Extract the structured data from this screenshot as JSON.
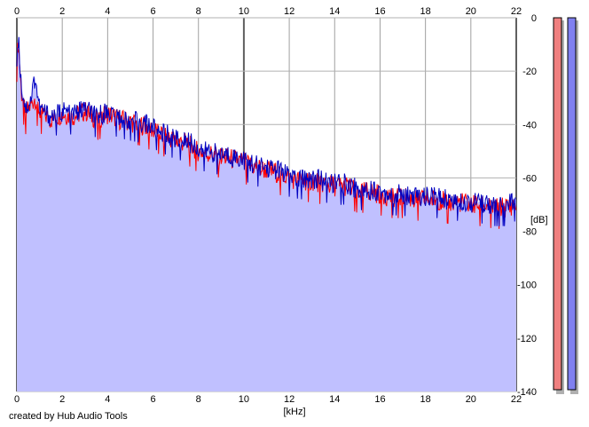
{
  "footer": {
    "credit": "created by Hub Audio Tools"
  },
  "meters": [
    {
      "name": "left channel level meter",
      "color": "#f08080"
    },
    {
      "name": "right channel level meter",
      "color": "#8080f0"
    }
  ],
  "chart_data": {
    "type": "area",
    "title": "",
    "xlabel": "[kHz]",
    "ylabel": "[dB]",
    "xlim": [
      0,
      22
    ],
    "ylim": [
      -140,
      0
    ],
    "xticks": [
      "0",
      "2",
      "4",
      "6",
      "8",
      "10",
      "12",
      "14",
      "16",
      "18",
      "20",
      "22"
    ],
    "yticks": [
      "0",
      "-20",
      "-40",
      "-60",
      "-80",
      "-100",
      "-120",
      "-140"
    ],
    "grid": true,
    "fill_color": "#c0c0ff",
    "series": [
      {
        "color": "#ff0000",
        "x": [
          0,
          0.05,
          0.1,
          0.2,
          0.4,
          0.6,
          0.8,
          1,
          1.5,
          2,
          2.5,
          3,
          3.5,
          4,
          4.5,
          5,
          5.5,
          6,
          6.5,
          7,
          7.5,
          8,
          8.5,
          9,
          9.5,
          10,
          10.5,
          11,
          11.5,
          12,
          12.5,
          13,
          13.5,
          14,
          14.5,
          15,
          15.5,
          16,
          16.5,
          17,
          17.5,
          18,
          18.5,
          19,
          19.5,
          20,
          20.5,
          21,
          21.5,
          22
        ],
        "values": [
          -20,
          -8,
          -14,
          -28,
          -36,
          -33,
          -30,
          -35,
          -38,
          -36,
          -37,
          -35,
          -38,
          -36,
          -38,
          -39,
          -40,
          -42,
          -44,
          -46,
          -47,
          -50,
          -51,
          -52,
          -53,
          -54,
          -56,
          -57,
          -58,
          -60,
          -61,
          -61,
          -62,
          -63,
          -63,
          -65,
          -65,
          -66,
          -67,
          -67,
          -68,
          -68,
          -68,
          -69,
          -69,
          -70,
          -70,
          -71,
          -71,
          -70
        ]
      },
      {
        "color": "#0000c0",
        "x": [
          0,
          0.05,
          0.1,
          0.2,
          0.4,
          0.6,
          0.8,
          1,
          1.5,
          2,
          2.5,
          3,
          3.5,
          4,
          4.5,
          5,
          5.5,
          6,
          6.5,
          7,
          7.5,
          8,
          8.5,
          9,
          9.5,
          10,
          10.5,
          11,
          11.5,
          12,
          12.5,
          13,
          13.5,
          14,
          14.5,
          15,
          15.5,
          16,
          16.5,
          17,
          17.5,
          18,
          18.5,
          19,
          19.5,
          20,
          20.5,
          21,
          21.5,
          22
        ],
        "values": [
          -18,
          -6,
          -12,
          -26,
          -34,
          -31,
          -22,
          -34,
          -37,
          -35,
          -36,
          -34,
          -37,
          -35,
          -37,
          -38,
          -39,
          -41,
          -43,
          -45,
          -46,
          -49,
          -50,
          -51,
          -52,
          -53,
          -55,
          -56,
          -57,
          -59,
          -60,
          -60,
          -61,
          -62,
          -62,
          -64,
          -64,
          -65,
          -66,
          -66,
          -67,
          -67,
          -67,
          -68,
          -68,
          -69,
          -69,
          -70,
          -70,
          -68
        ]
      }
    ]
  }
}
